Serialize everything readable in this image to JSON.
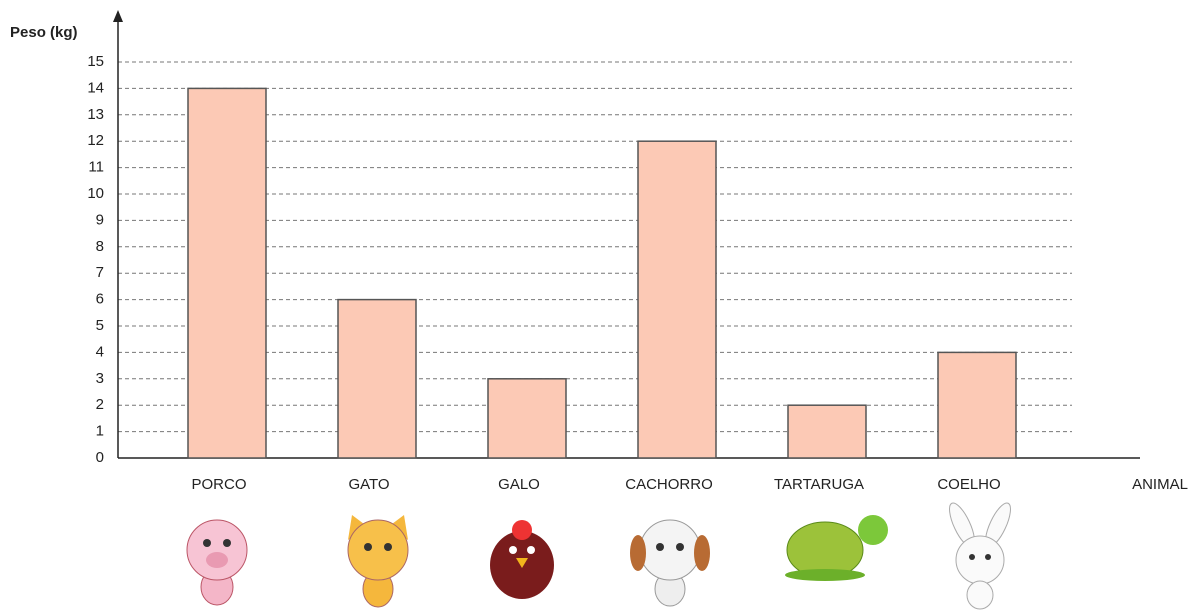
{
  "chart_data": {
    "type": "bar",
    "y_label": "Peso (kg)",
    "x_label": "ANIMAL",
    "categories": [
      "PORCO",
      "GATO",
      "GALO",
      "CACHORRO",
      "TARTARUGA",
      "COELHO"
    ],
    "values": [
      14,
      6,
      3,
      12,
      2,
      4
    ],
    "color": "#fcc9b5",
    "ylim": [
      0,
      15
    ],
    "yticks": [
      0,
      1,
      2,
      3,
      4,
      5,
      6,
      7,
      8,
      9,
      10,
      11,
      12,
      13,
      14,
      15
    ],
    "grid": true
  }
}
